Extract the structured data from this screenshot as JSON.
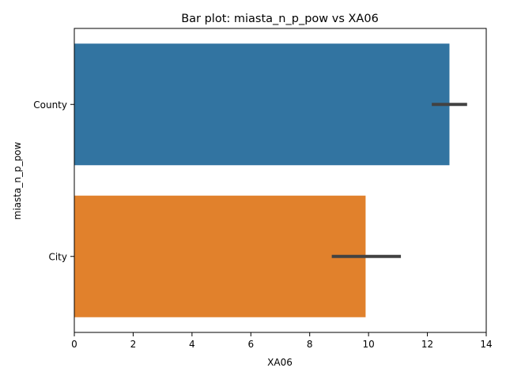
{
  "chart_data": {
    "type": "bar",
    "orientation": "horizontal",
    "title": "Bar plot: miasta_n_p_pow vs XA06",
    "xlabel": "XA06",
    "ylabel": "miasta_n_p_pow",
    "categories": [
      "County",
      "City"
    ],
    "values": [
      12.75,
      9.9
    ],
    "error_bars": [
      [
        12.15,
        13.35
      ],
      [
        8.75,
        11.1
      ]
    ],
    "colors": [
      "#3274a1",
      "#e1812c"
    ],
    "xlim": [
      0,
      14
    ],
    "xticks": [
      0,
      2,
      4,
      6,
      8,
      10,
      12,
      14
    ],
    "grid": false,
    "legend": "none"
  }
}
